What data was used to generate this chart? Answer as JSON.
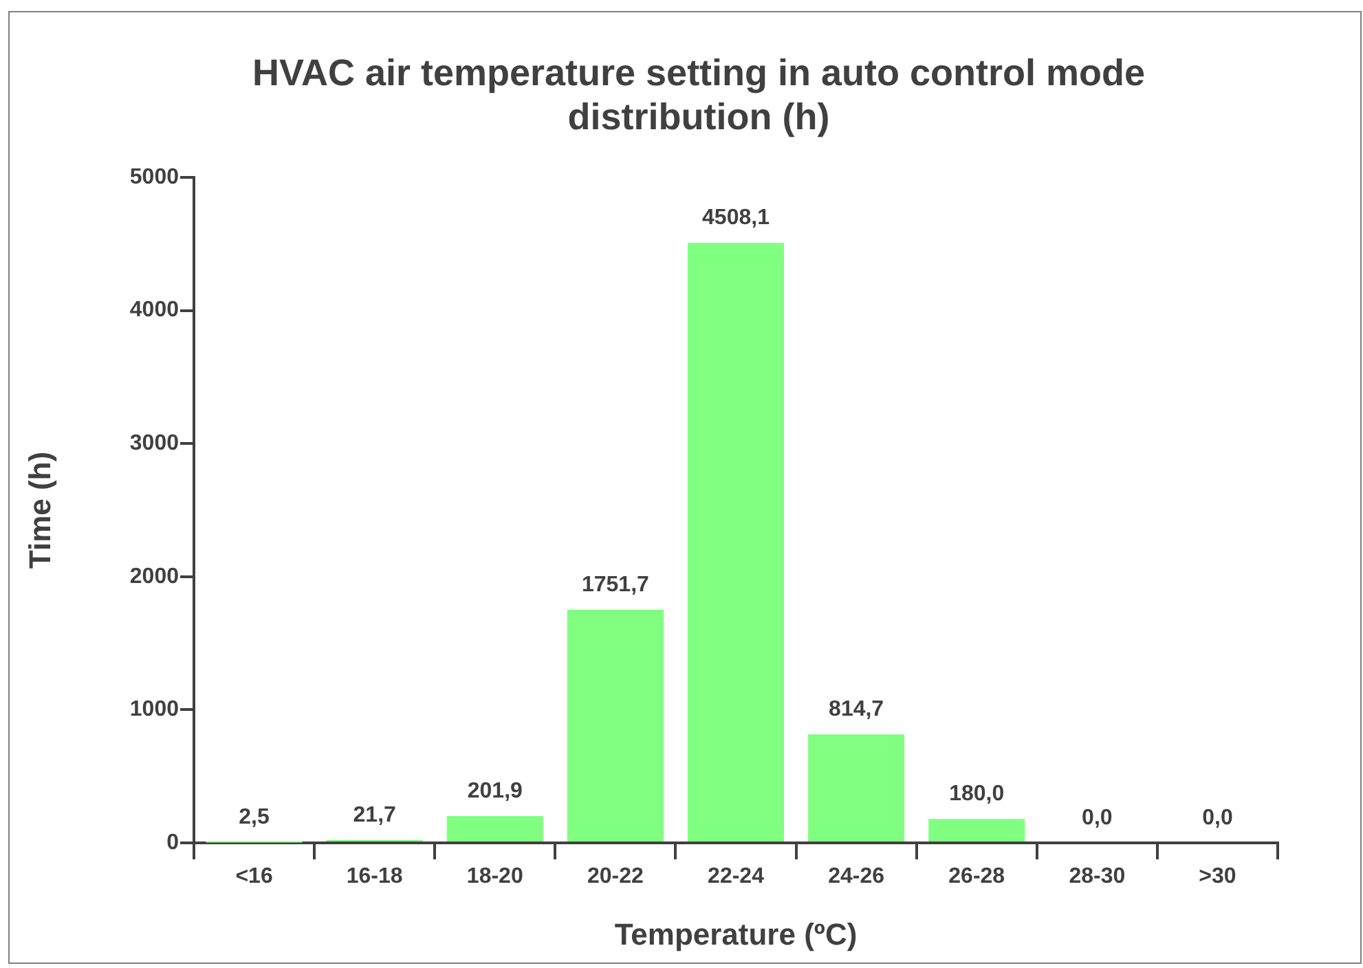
{
  "chart_data": {
    "type": "bar",
    "title": "HVAC air temperature setting in auto control mode distribution (h)",
    "xlabel": "Temperature (ºC)",
    "ylabel": "Time (h)",
    "categories": [
      "<16",
      "16-18",
      "18-20",
      "20-22",
      "22-24",
      "24-26",
      "26-28",
      "28-30",
      ">30"
    ],
    "values": [
      2.5,
      21.7,
      201.9,
      1751.7,
      4508.1,
      814.7,
      180.0,
      0.0,
      0.0
    ],
    "value_labels": [
      "2,5",
      "21,7",
      "201,9",
      "1751,7",
      "4508,1",
      "814,7",
      "180,0",
      "0,0",
      "0,0"
    ],
    "color": "#80ff80",
    "ylim": [
      0,
      5000
    ],
    "yticks": [
      0,
      1000,
      2000,
      3000,
      4000,
      5000
    ],
    "grid": false,
    "legend": false
  }
}
